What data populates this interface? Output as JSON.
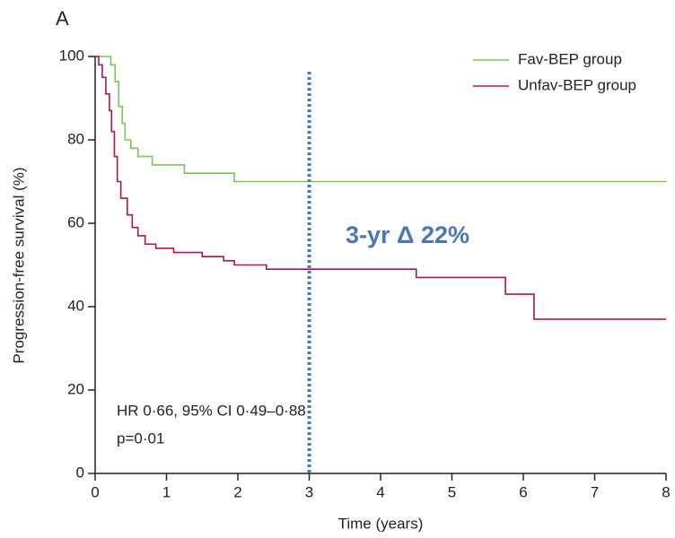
{
  "chart_data": {
    "type": "line",
    "panel": "A",
    "xlabel": "Time (years)",
    "ylabel": "Progression-free survival (%)",
    "xlim": [
      0,
      8
    ],
    "xticks": [
      0,
      1,
      2,
      3,
      4,
      5,
      6,
      7,
      8
    ],
    "ylim": [
      0,
      100
    ],
    "yticks": [
      0,
      20,
      40,
      60,
      80,
      100
    ],
    "series": [
      {
        "name": "Fav-BEP group",
        "color": "#7cc35a",
        "x": [
          0,
          0.22,
          0.22,
          0.28,
          0.28,
          0.33,
          0.33,
          0.38,
          0.38,
          0.42,
          0.42,
          0.5,
          0.5,
          0.6,
          0.6,
          0.8,
          0.8,
          1.25,
          1.25,
          1.95,
          1.95,
          8
        ],
        "values": [
          100,
          100,
          98,
          98,
          94,
          94,
          88,
          88,
          84,
          84,
          80,
          80,
          78,
          78,
          76,
          76,
          74,
          74,
          72,
          72,
          70,
          70
        ]
      },
      {
        "name": "Unfav-BEP group",
        "color": "#b0154a",
        "x": [
          0,
          0.05,
          0.05,
          0.1,
          0.1,
          0.15,
          0.15,
          0.2,
          0.2,
          0.23,
          0.23,
          0.27,
          0.27,
          0.31,
          0.31,
          0.36,
          0.36,
          0.45,
          0.45,
          0.52,
          0.52,
          0.6,
          0.6,
          0.7,
          0.7,
          0.85,
          0.85,
          1.1,
          1.1,
          1.5,
          1.5,
          1.8,
          1.8,
          1.95,
          1.95,
          2.4,
          2.4,
          4.5,
          4.5,
          5.75,
          5.75,
          6.15,
          6.15,
          8
        ],
        "values": [
          100,
          100,
          98,
          98,
          95,
          95,
          91,
          91,
          87,
          87,
          82,
          82,
          76,
          76,
          70,
          70,
          66,
          66,
          62,
          62,
          59,
          59,
          57,
          57,
          55,
          55,
          54,
          54,
          53,
          53,
          52,
          52,
          51,
          51,
          50,
          50,
          49,
          49,
          47,
          47,
          43,
          43,
          37,
          37
        ]
      }
    ],
    "vline": 3,
    "vline_color": "#4a78b5",
    "annotations": [
      "3-yr Δ 22%",
      "HR 0·66, 95% CI 0·49–0·88",
      "p=0·01"
    ],
    "legend": "top-right"
  }
}
